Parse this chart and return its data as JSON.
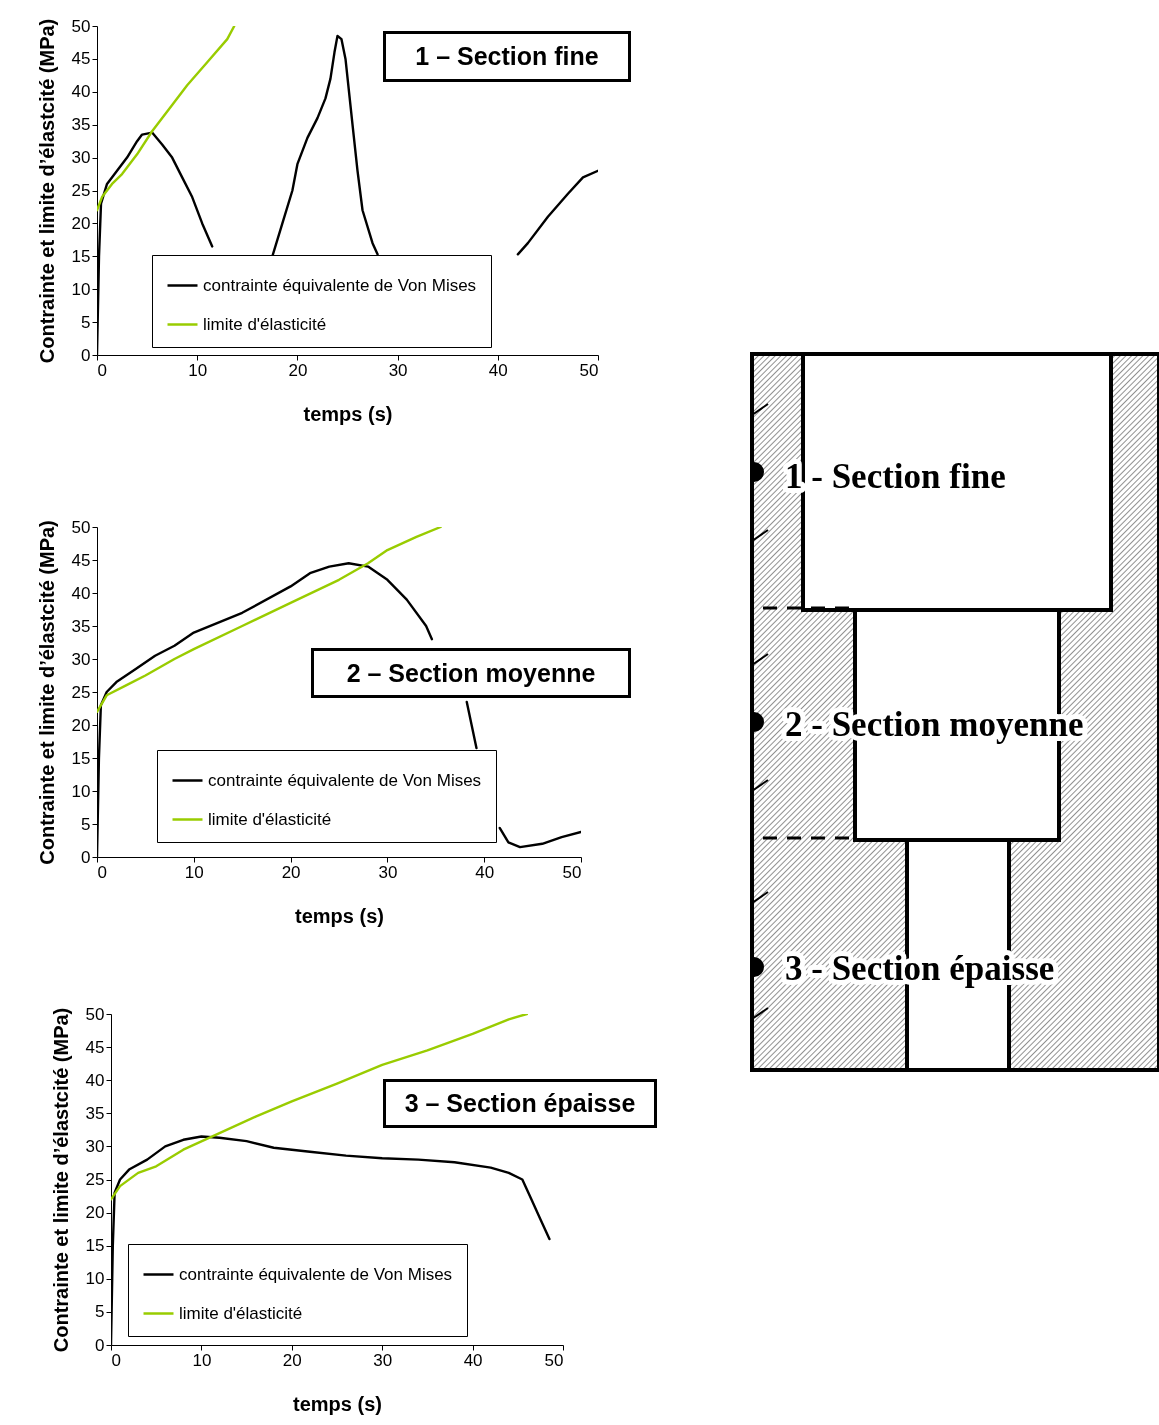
{
  "chart_data": [
    {
      "type": "line",
      "title": "1 – Section fine",
      "xlabel": "temps (s)",
      "ylabel": "Contrainte et limite d’élastcité (MPa)",
      "xlim": [
        0,
        50
      ],
      "ylim": [
        0,
        50
      ],
      "xticks": [
        0,
        10,
        20,
        30,
        40,
        50
      ],
      "yticks": [
        0,
        5,
        10,
        15,
        20,
        25,
        30,
        35,
        40,
        45,
        50
      ],
      "legend": "bottom",
      "series": [
        {
          "name": "contrainte équivalente de Von Mises",
          "color": "#000000",
          "x": [
            0,
            0.2,
            0.4,
            1,
            2,
            3,
            4,
            4.5,
            5.5,
            6.5,
            7.5,
            8.5,
            9.5,
            10.5,
            11.5,
            14,
            17.5,
            18.5,
            19.5,
            20,
            21,
            22,
            22.8,
            23.3,
            23.7,
            24,
            24.4,
            24.8,
            25.5,
            26,
            26.5,
            27.5,
            28,
            35,
            42,
            43,
            45,
            47,
            48.5,
            50
          ],
          "values": [
            0,
            15,
            23,
            26,
            28,
            30,
            32.5,
            33.5,
            33.8,
            32,
            30,
            27,
            24,
            20,
            16.5,
            null,
            15,
            20,
            25,
            29,
            33,
            36,
            39,
            42,
            46,
            48.5,
            48,
            45,
            35,
            28,
            22,
            17,
            15.3,
            null,
            15.3,
            17,
            21,
            24.5,
            27,
            28
          ]
        },
        {
          "name": "limite d'élasticité",
          "color": "#99cc00",
          "x": [
            0,
            0.5,
            1.5,
            2.5,
            4,
            5.5,
            7.5,
            9,
            11,
            13,
            13.7
          ],
          "values": [
            22,
            24,
            26,
            27.5,
            30.5,
            34,
            38,
            41,
            44.5,
            48,
            50
          ]
        }
      ]
    },
    {
      "type": "line",
      "title": "2 – Section moyenne",
      "xlabel": "temps (s)",
      "ylabel": "Contrainte et limite d’élastcité (MPa)",
      "xlim": [
        0,
        50
      ],
      "ylim": [
        0,
        50
      ],
      "xticks": [
        0,
        10,
        20,
        30,
        40,
        50
      ],
      "yticks": [
        0,
        5,
        10,
        15,
        20,
        25,
        30,
        35,
        40,
        45,
        50
      ],
      "legend": "bottom",
      "series": [
        {
          "name": "contrainte équivalente de Von Mises",
          "color": "#000000",
          "x": [
            0,
            0.2,
            0.4,
            1,
            2,
            4,
            6,
            8,
            10,
            15,
            20,
            22,
            24,
            26,
            28,
            30,
            32,
            34,
            34.6,
            36.5,
            38.2,
            38.7,
            39.2,
            40.5,
            41.6,
            42.5,
            43.7,
            46,
            48,
            50
          ],
          "values": [
            0,
            15,
            23,
            25,
            26.5,
            28.5,
            30.5,
            32,
            34,
            37,
            41,
            43,
            44,
            44.5,
            44,
            42,
            39,
            35,
            33,
            null,
            23.5,
            20,
            16.5,
            null,
            4.4,
            2.2,
            1.5,
            2,
            3,
            3.8
          ]
        },
        {
          "name": "limite d'élasticité",
          "color": "#99cc00",
          "x": [
            0,
            1,
            3,
            5,
            8,
            10,
            15,
            20,
            25,
            28,
            30,
            33,
            35.5
          ],
          "values": [
            22,
            24.5,
            26,
            27.5,
            30,
            31.5,
            35,
            38.5,
            42,
            44.5,
            46.5,
            48.5,
            50
          ]
        }
      ]
    },
    {
      "type": "line",
      "title": "3 – Section épaisse",
      "xlabel": "temps (s)",
      "ylabel": "Contrainte et limite d’élastcité (MPa)",
      "xlim": [
        0,
        50
      ],
      "ylim": [
        0,
        50
      ],
      "xticks": [
        0,
        10,
        20,
        30,
        40,
        50
      ],
      "yticks": [
        0,
        5,
        10,
        15,
        20,
        25,
        30,
        35,
        40,
        45,
        50
      ],
      "legend": "bottom",
      "series": [
        {
          "name": "contrainte équivalente de Von Mises",
          "color": "#000000",
          "x": [
            0,
            0.2,
            0.4,
            1,
            2,
            4,
            6,
            8,
            10,
            12,
            15,
            18,
            22,
            26,
            30,
            34,
            38,
            42,
            44,
            45.5,
            46.5,
            47.5,
            48.5
          ],
          "values": [
            0,
            15,
            23,
            25,
            26.5,
            28,
            30,
            31,
            31.5,
            31.3,
            30.8,
            29.8,
            29.2,
            28.6,
            28.2,
            28,
            27.6,
            26.8,
            26,
            25,
            22,
            19,
            16
          ]
        },
        {
          "name": "limite d'élasticité",
          "color": "#99cc00",
          "x": [
            0,
            1,
            3,
            5,
            8,
            12,
            16,
            20,
            25,
            30,
            35,
            40,
            44,
            46
          ],
          "values": [
            22,
            24,
            26,
            27,
            29.5,
            32,
            34.5,
            36.8,
            39.5,
            42.3,
            44.5,
            47,
            49.2,
            50
          ]
        }
      ]
    },
    {
      "type": "other",
      "annotations": [
        "1 - Section fine",
        "2 - Section moyenne",
        "3 - Section épaisse"
      ]
    }
  ]
}
